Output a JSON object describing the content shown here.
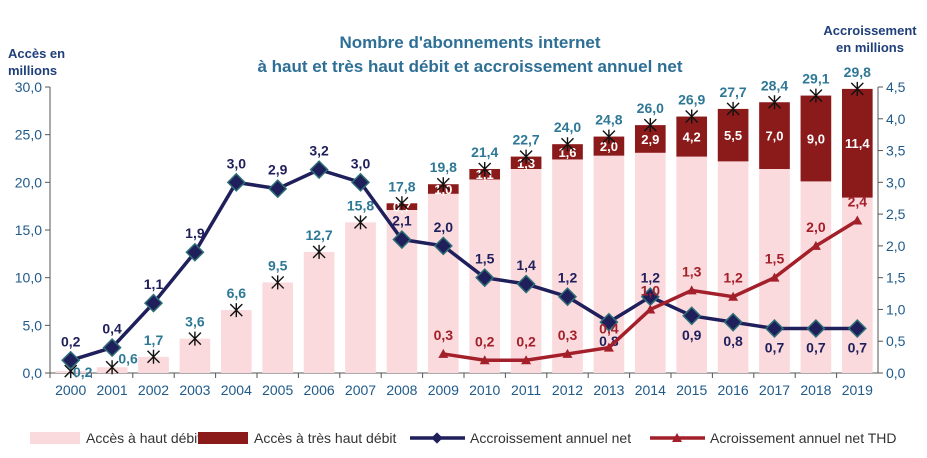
{
  "chart_data": {
    "type": "bar",
    "title": [
      "Nombre d'abonnements internet",
      "à haut et très haut débit et accroissement annuel net"
    ],
    "ylabel": [
      "Accès en",
      "millions"
    ],
    "y2label": [
      "Accroissement",
      "en millions"
    ],
    "ylim": [
      0,
      30
    ],
    "y2lim": [
      0,
      4.5
    ],
    "yticks": [
      "0,0",
      "5,0",
      "10,0",
      "15,0",
      "20,0",
      "25,0",
      "30,0"
    ],
    "y2ticks": [
      "0,0",
      "0,5",
      "1,0",
      "1,5",
      "2,0",
      "2,5",
      "3,0",
      "3,5",
      "4,0",
      "4,5"
    ],
    "categories": [
      "2000",
      "2001",
      "2002",
      "2003",
      "2004",
      "2005",
      "2006",
      "2007",
      "2008",
      "2009",
      "2010",
      "2011",
      "2012",
      "2013",
      "2014",
      "2015",
      "2016",
      "2017",
      "2018",
      "2019"
    ],
    "totals": [
      0.2,
      0.6,
      1.7,
      3.6,
      6.6,
      9.5,
      12.7,
      15.8,
      17.8,
      19.8,
      21.4,
      22.7,
      24.0,
      24.8,
      26.0,
      26.9,
      27.7,
      28.4,
      29.1,
      29.8
    ],
    "total_labels": [
      "0,2",
      "0,6",
      "1,7",
      "3,6",
      "6,6",
      "9,5",
      "12,7",
      "15,8",
      "17,8",
      "19,8",
      "21,4",
      "22,7",
      "24,0",
      "24,8",
      "26,0",
      "26,9",
      "27,7",
      "28,4",
      "29,1",
      "29,8"
    ],
    "series": [
      {
        "name": "Accès à haut débit",
        "axis": "left",
        "kind": "bar",
        "color": "#fadadd"
      },
      {
        "name": "Accès à très haut débit",
        "axis": "left",
        "kind": "bar",
        "color": "#8b1a1a",
        "values": [
          null,
          null,
          null,
          null,
          null,
          null,
          null,
          null,
          0.7,
          1.0,
          1.1,
          1.3,
          1.6,
          2.0,
          2.9,
          4.2,
          5.5,
          7.0,
          9.0,
          11.4
        ],
        "labels": [
          null,
          null,
          null,
          null,
          null,
          null,
          null,
          null,
          "0,7",
          "1,0",
          "1,1",
          "1,3",
          "1,6",
          "2,0",
          "2,9",
          "4,2",
          "5,5",
          "7,0",
          "9,0",
          "11,4"
        ]
      },
      {
        "name": "Accroissement annuel net",
        "axis": "right",
        "kind": "line",
        "color": "#1f1f5c",
        "values": [
          0.2,
          0.4,
          1.1,
          1.9,
          3.0,
          2.9,
          3.2,
          3.0,
          2.1,
          2.0,
          1.5,
          1.4,
          1.2,
          0.8,
          1.2,
          0.9,
          0.8,
          0.7,
          0.7,
          0.7
        ],
        "labels": [
          "0,2",
          "0,4",
          "1,1",
          "1,9",
          "3,0",
          "2,9",
          "3,2",
          "3,0",
          "2,1",
          "2,0",
          "1,5",
          "1,4",
          "1,2",
          "0,8",
          "1,2",
          "0,9",
          "0,8",
          "0,7",
          "0,7",
          "0,7"
        ]
      },
      {
        "name": "Acroissement annuel net THD",
        "axis": "right",
        "kind": "line",
        "color": "#a31f2a",
        "values": [
          null,
          null,
          null,
          null,
          null,
          null,
          null,
          null,
          null,
          0.3,
          0.2,
          0.2,
          0.3,
          0.4,
          1.0,
          1.3,
          1.2,
          1.5,
          2.0,
          2.4
        ],
        "labels": [
          null,
          null,
          null,
          null,
          null,
          null,
          null,
          null,
          null,
          "0,3",
          "0,2",
          "0,2",
          "0,3",
          "0,4",
          "1,0",
          "1,3",
          "1,2",
          "1,5",
          "2,0",
          "2,4"
        ]
      }
    ],
    "legend_position": "bottom"
  }
}
